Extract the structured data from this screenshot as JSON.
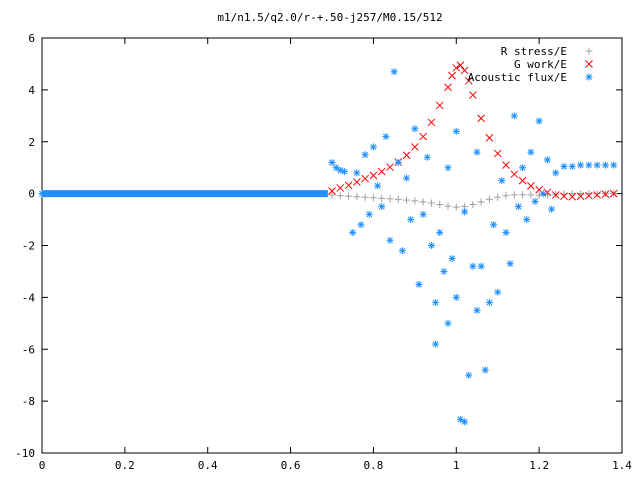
{
  "chart_data": {
    "type": "scatter",
    "title": "m1/n1.5/q2.0/r-+.50-j257/M0.15/512",
    "xlabel": "",
    "ylabel": "",
    "xlim": [
      0,
      1.4
    ],
    "ylim": [
      -10,
      6
    ],
    "x_ticks": [
      "0",
      "0.2",
      "0.4",
      "0.6",
      "0.8",
      "1",
      "1.2",
      "1.4"
    ],
    "y_ticks": [
      "6",
      "4",
      "2",
      "0",
      "-2",
      "-4",
      "-6",
      "-8",
      "-10"
    ],
    "grid": false,
    "legend_position": "top-right",
    "series": [
      {
        "name": "R stress/E",
        "marker": "+",
        "color": "#a0a0a0",
        "points": [
          [
            0.7,
            -0.05
          ],
          [
            0.72,
            -0.08
          ],
          [
            0.74,
            -0.1
          ],
          [
            0.76,
            -0.12
          ],
          [
            0.78,
            -0.14
          ],
          [
            0.8,
            -0.16
          ],
          [
            0.82,
            -0.18
          ],
          [
            0.84,
            -0.2
          ],
          [
            0.86,
            -0.22
          ],
          [
            0.88,
            -0.25
          ],
          [
            0.9,
            -0.28
          ],
          [
            0.92,
            -0.32
          ],
          [
            0.94,
            -0.36
          ],
          [
            0.96,
            -0.42
          ],
          [
            0.98,
            -0.48
          ],
          [
            1.0,
            -0.52
          ],
          [
            1.02,
            -0.5
          ],
          [
            1.04,
            -0.42
          ],
          [
            1.06,
            -0.32
          ],
          [
            1.08,
            -0.22
          ],
          [
            1.1,
            -0.14
          ],
          [
            1.12,
            -0.08
          ],
          [
            1.14,
            -0.05
          ],
          [
            1.16,
            -0.04
          ],
          [
            1.18,
            -0.05
          ],
          [
            1.2,
            -0.06
          ],
          [
            1.22,
            -0.05
          ],
          [
            1.24,
            -0.03
          ],
          [
            1.26,
            -0.01
          ],
          [
            1.28,
            0.0
          ],
          [
            1.3,
            0.0
          ],
          [
            1.32,
            0.0
          ],
          [
            1.34,
            0.0
          ],
          [
            1.36,
            0.0
          ],
          [
            1.38,
            0.0
          ]
        ]
      },
      {
        "name": "G work/E",
        "marker": "x",
        "color": "#ff0000",
        "points": [
          [
            0.7,
            0.1
          ],
          [
            0.72,
            0.22
          ],
          [
            0.74,
            0.32
          ],
          [
            0.76,
            0.45
          ],
          [
            0.78,
            0.58
          ],
          [
            0.8,
            0.7
          ],
          [
            0.82,
            0.85
          ],
          [
            0.84,
            1.02
          ],
          [
            0.86,
            1.22
          ],
          [
            0.88,
            1.48
          ],
          [
            0.9,
            1.8
          ],
          [
            0.92,
            2.2
          ],
          [
            0.94,
            2.75
          ],
          [
            0.96,
            3.4
          ],
          [
            0.98,
            4.1
          ],
          [
            0.99,
            4.55
          ],
          [
            1.0,
            4.85
          ],
          [
            1.01,
            4.95
          ],
          [
            1.02,
            4.75
          ],
          [
            1.03,
            4.35
          ],
          [
            1.04,
            3.8
          ],
          [
            1.06,
            2.9
          ],
          [
            1.08,
            2.15
          ],
          [
            1.1,
            1.55
          ],
          [
            1.12,
            1.1
          ],
          [
            1.14,
            0.75
          ],
          [
            1.16,
            0.5
          ],
          [
            1.18,
            0.3
          ],
          [
            1.2,
            0.15
          ],
          [
            1.22,
            0.05
          ],
          [
            1.24,
            -0.05
          ],
          [
            1.26,
            -0.1
          ],
          [
            1.28,
            -0.12
          ],
          [
            1.3,
            -0.1
          ],
          [
            1.32,
            -0.08
          ],
          [
            1.34,
            -0.05
          ],
          [
            1.36,
            -0.02
          ],
          [
            1.38,
            0.0
          ]
        ]
      },
      {
        "name": "Acoustic flux/E",
        "marker": "*",
        "color": "#1e90ff",
        "points": [
          [
            0.0,
            0.0
          ],
          [
            0.05,
            0.0
          ],
          [
            0.1,
            0.0
          ],
          [
            0.15,
            0.0
          ],
          [
            0.2,
            0.0
          ],
          [
            0.25,
            0.0
          ],
          [
            0.3,
            0.0
          ],
          [
            0.35,
            0.0
          ],
          [
            0.4,
            0.0
          ],
          [
            0.45,
            0.0
          ],
          [
            0.5,
            0.0
          ],
          [
            0.55,
            0.0
          ],
          [
            0.6,
            0.0
          ],
          [
            0.65,
            0.0
          ],
          [
            0.7,
            1.2
          ],
          [
            0.71,
            1.0
          ],
          [
            0.72,
            0.9
          ],
          [
            0.73,
            0.85
          ],
          [
            0.75,
            -1.5
          ],
          [
            0.76,
            0.8
          ],
          [
            0.77,
            -1.2
          ],
          [
            0.78,
            1.5
          ],
          [
            0.79,
            -0.8
          ],
          [
            0.8,
            1.8
          ],
          [
            0.81,
            0.3
          ],
          [
            0.82,
            -0.5
          ],
          [
            0.83,
            2.2
          ],
          [
            0.84,
            -1.8
          ],
          [
            0.85,
            4.7
          ],
          [
            0.86,
            1.2
          ],
          [
            0.87,
            -2.2
          ],
          [
            0.88,
            0.6
          ],
          [
            0.89,
            -1.0
          ],
          [
            0.9,
            2.5
          ],
          [
            0.91,
            -3.5
          ],
          [
            0.92,
            -0.8
          ],
          [
            0.93,
            1.4
          ],
          [
            0.94,
            -2.0
          ],
          [
            0.95,
            -4.2
          ],
          [
            0.95,
            -5.8
          ],
          [
            0.96,
            -1.5
          ],
          [
            0.97,
            -3.0
          ],
          [
            0.98,
            -5.0
          ],
          [
            0.98,
            1.0
          ],
          [
            0.99,
            -2.5
          ],
          [
            1.0,
            -4.0
          ],
          [
            1.0,
            2.4
          ],
          [
            1.01,
            -8.7
          ],
          [
            1.02,
            -8.8
          ],
          [
            1.02,
            -0.7
          ],
          [
            1.03,
            -7.0
          ],
          [
            1.04,
            -2.8
          ],
          [
            1.05,
            -4.5
          ],
          [
            1.05,
            1.6
          ],
          [
            1.06,
            -2.8
          ],
          [
            1.07,
            -6.8
          ],
          [
            1.08,
            -4.2
          ],
          [
            1.09,
            -1.2
          ],
          [
            1.1,
            -3.8
          ],
          [
            1.11,
            0.5
          ],
          [
            1.12,
            -1.5
          ],
          [
            1.13,
            -2.7
          ],
          [
            1.14,
            3.0
          ],
          [
            1.15,
            -0.5
          ],
          [
            1.16,
            1.0
          ],
          [
            1.17,
            -1.0
          ],
          [
            1.18,
            1.6
          ],
          [
            1.19,
            -0.3
          ],
          [
            1.2,
            2.8
          ],
          [
            1.21,
            0.0
          ],
          [
            1.22,
            1.3
          ],
          [
            1.23,
            -0.6
          ],
          [
            1.24,
            0.8
          ],
          [
            1.26,
            1.05
          ],
          [
            1.28,
            1.05
          ],
          [
            1.3,
            1.1
          ],
          [
            1.32,
            1.1
          ],
          [
            1.34,
            1.1
          ],
          [
            1.36,
            1.1
          ],
          [
            1.38,
            1.1
          ]
        ]
      }
    ]
  }
}
